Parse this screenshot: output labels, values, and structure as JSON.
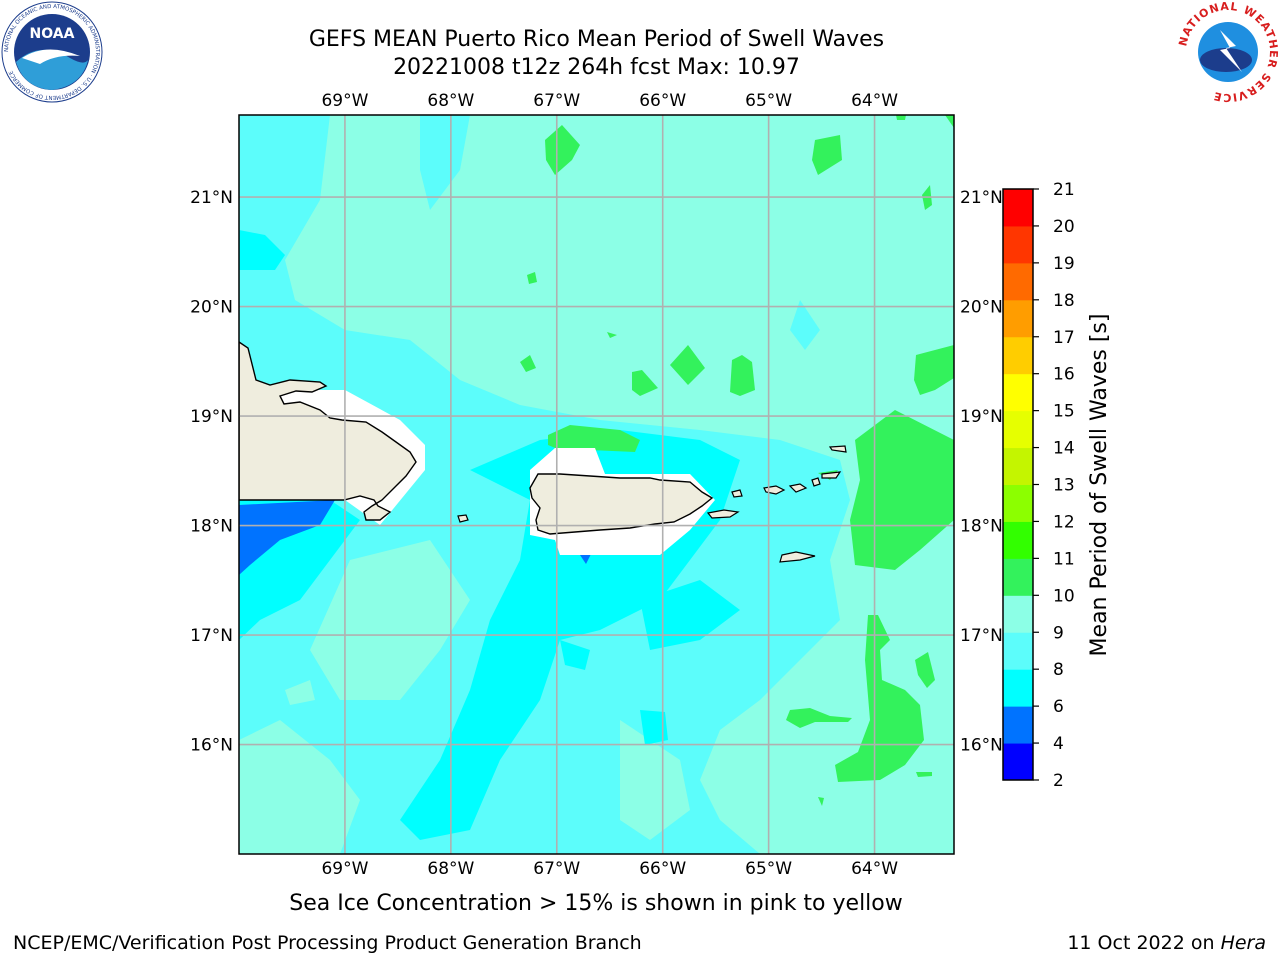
{
  "title": {
    "line1": "GEFS MEAN Puerto Rico Mean Period of Swell Waves",
    "line2": "20221008 t12z 264h fcst   Max: 10.97"
  },
  "subtitle": "Sea Ice Concentration > 15% is shown in pink to yellow",
  "footer": {
    "left": "NCEP/EMC/Verification Post Processing Product Generation Branch",
    "right_date": "11 Oct 2022 on ",
    "right_host": "Hera"
  },
  "logos": {
    "noaa": "NOAA",
    "noaa_ring": "NATIONAL OCEANIC AND ATMOSPHERIC ADMINISTRATION · U.S. DEPARTMENT OF COMMERCE",
    "nws_ring": "NATIONAL WEATHER SERVICE"
  },
  "map": {
    "lon_range": [
      -70,
      -63.25
    ],
    "lat_range": [
      15,
      21.75
    ],
    "lon_labels": [
      {
        "lon": -69,
        "label": "69°W"
      },
      {
        "lon": -68,
        "label": "68°W"
      },
      {
        "lon": -67,
        "label": "67°W"
      },
      {
        "lon": -66,
        "label": "66°W"
      },
      {
        "lon": -65,
        "label": "65°W"
      },
      {
        "lon": -64,
        "label": "64°W"
      }
    ],
    "lat_labels": [
      {
        "lat": 21,
        "label": "21°N"
      },
      {
        "lat": 20,
        "label": "20°N"
      },
      {
        "lat": 19,
        "label": "19°N"
      },
      {
        "lat": 18,
        "label": "18°N"
      },
      {
        "lat": 17,
        "label": "17°N"
      },
      {
        "lat": 16,
        "label": "16°N"
      }
    ],
    "background_level_color": "#8cffe6",
    "land_color": "#efedde",
    "masked_color": "#ffffff",
    "grid_color": "#b0b0b0"
  },
  "colorbar": {
    "label": "Mean Period of Swell Waves [s]",
    "levels": [
      2,
      4,
      6,
      8,
      9,
      10,
      11,
      12,
      13,
      14,
      15,
      16,
      17,
      18,
      19,
      20,
      21
    ],
    "colors": [
      "#0000ff",
      "#0073ff",
      "#00ffff",
      "#5cfdfb",
      "#8cffe6",
      "#33f25c",
      "#32ff00",
      "#8cff00",
      "#c4f500",
      "#e6ff00",
      "#ffff00",
      "#ffcd00",
      "#ff9d00",
      "#ff6a00",
      "#ff3600",
      "#ff0000"
    ]
  }
}
